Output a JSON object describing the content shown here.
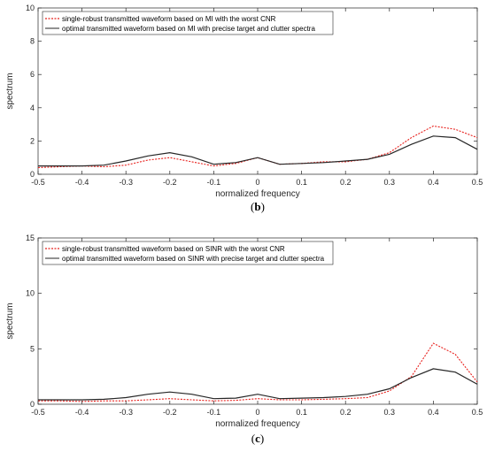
{
  "colors": {
    "robust": "#e8201c",
    "optimal": "#262626",
    "axis": "#262626"
  },
  "chart_data": [
    {
      "type": "line",
      "panel_label": "b",
      "xlabel": "normalized frequency",
      "ylabel": "spectrum",
      "xlim": [
        -0.5,
        0.5
      ],
      "ylim": [
        0,
        10
      ],
      "xticks": [
        "-0.5",
        "-0.4",
        "-0.3",
        "-0.2",
        "-0.1",
        "0",
        "0.1",
        "0.2",
        "0.3",
        "0.4",
        "0.5"
      ],
      "yticks": [
        "0",
        "2",
        "4",
        "6",
        "8",
        "10"
      ],
      "grid": false,
      "legend_position": "top-left",
      "x": [
        -0.5,
        -0.45,
        -0.4,
        -0.35,
        -0.3,
        -0.25,
        -0.2,
        -0.15,
        -0.1,
        -0.05,
        0,
        0.05,
        0.1,
        0.15,
        0.2,
        0.25,
        0.3,
        0.35,
        0.4,
        0.45,
        0.5
      ],
      "series": [
        {
          "name": "single-robust transmitted waveform based on MI with the worst CNR",
          "style": "dotted",
          "color": "#e8201c",
          "values": [
            0.4,
            0.45,
            0.5,
            0.45,
            0.55,
            0.85,
            1.0,
            0.75,
            0.5,
            0.65,
            1.0,
            0.6,
            0.65,
            0.75,
            0.75,
            0.9,
            1.3,
            2.2,
            2.9,
            2.7,
            2.2
          ]
        },
        {
          "name": "optimal transmitted waveform based on MI with precise target and clutter spectra",
          "style": "solid",
          "color": "#262626",
          "values": [
            0.5,
            0.5,
            0.5,
            0.55,
            0.8,
            1.1,
            1.3,
            1.05,
            0.6,
            0.7,
            1.0,
            0.6,
            0.65,
            0.7,
            0.8,
            0.9,
            1.2,
            1.8,
            2.3,
            2.2,
            1.5
          ]
        }
      ]
    },
    {
      "type": "line",
      "panel_label": "c",
      "xlabel": "normalized frequency",
      "ylabel": "spectrum",
      "xlim": [
        -0.5,
        0.5
      ],
      "ylim": [
        0,
        15
      ],
      "xticks": [
        "-0.5",
        "-0.4",
        "-0.3",
        "-0.2",
        "-0.1",
        "0",
        "0.1",
        "0.2",
        "0.3",
        "0.4",
        "0.5"
      ],
      "yticks": [
        "0",
        "5",
        "10",
        "15"
      ],
      "grid": false,
      "legend_position": "top-left",
      "x": [
        -0.5,
        -0.45,
        -0.4,
        -0.35,
        -0.3,
        -0.25,
        -0.2,
        -0.15,
        -0.1,
        -0.05,
        0,
        0.05,
        0.1,
        0.15,
        0.2,
        0.25,
        0.3,
        0.35,
        0.4,
        0.45,
        0.5
      ],
      "series": [
        {
          "name": "single-robust transmitted waveform based on SINR with the worst CNR",
          "style": "dotted",
          "color": "#e8201c",
          "values": [
            0.3,
            0.3,
            0.25,
            0.3,
            0.3,
            0.4,
            0.5,
            0.4,
            0.3,
            0.35,
            0.5,
            0.4,
            0.4,
            0.45,
            0.5,
            0.6,
            1.2,
            2.5,
            5.5,
            4.5,
            2.0
          ]
        },
        {
          "name": "optimal transmitted waveform based on SINR with precise target and clutter spectra",
          "style": "solid",
          "color": "#262626",
          "values": [
            0.4,
            0.4,
            0.4,
            0.45,
            0.6,
            0.9,
            1.1,
            0.9,
            0.5,
            0.55,
            0.9,
            0.5,
            0.55,
            0.6,
            0.7,
            0.9,
            1.4,
            2.4,
            3.2,
            2.9,
            1.8
          ]
        }
      ]
    }
  ]
}
